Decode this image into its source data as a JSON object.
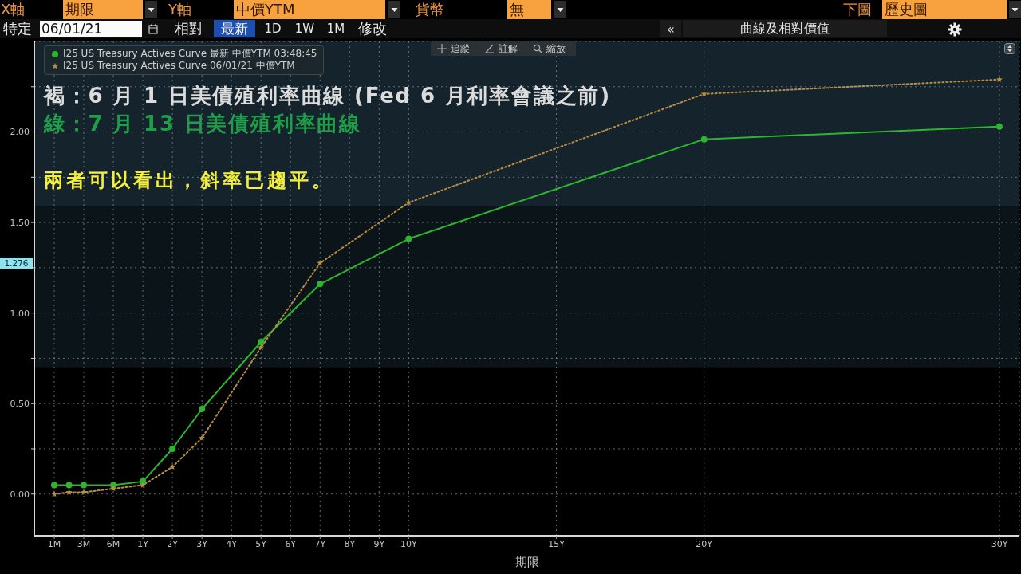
{
  "chart_data": {
    "type": "line",
    "xlabel": "期限",
    "annotations": [
      "褐：6 月 1 日美債殖利率曲線 (Fed 6 月利率會議之前)",
      "綠：7 月 13 日美債殖利率曲線",
      "兩者可以看出，斜率已趨平。",
      "X軸",
      "期限",
      "Y軸",
      "中價YTM",
      "貨幣",
      "無",
      "下圖",
      "歷史圖",
      "特定",
      "06/01/21",
      "相對",
      "最新",
      "1D",
      "1W",
      "1M",
      "修改",
      "«",
      "曲線及相對價值",
      "追蹤",
      "註解",
      "縮放",
      {
        "text": "1.276",
        "y": 1.276
      }
    ],
    "categories": [
      "1M",
      null,
      "3M",
      null,
      "6M",
      null,
      "1Y",
      null,
      "2Y",
      null,
      "3Y",
      null,
      "4Y",
      null,
      "5Y",
      null,
      "6Y",
      null,
      "7Y",
      null,
      "8Y",
      null,
      "9Y",
      null,
      "10Y",
      null,
      null,
      null,
      null,
      null,
      null,
      null,
      null,
      null,
      "15Y",
      null,
      null,
      null,
      null,
      null,
      null,
      null,
      null,
      null,
      "20Y",
      null,
      null,
      null,
      null,
      null,
      null,
      null,
      null,
      null,
      null,
      null,
      null,
      null,
      null,
      null,
      null,
      null,
      null,
      null,
      "30Y"
    ],
    "ylim": [
      -0.23,
      2.5
    ],
    "yticks": [
      {
        "value": 0,
        "label": "0.00"
      },
      {
        "value": 0.25,
        "label": null
      },
      {
        "value": 0.5,
        "label": "0.50"
      },
      {
        "value": 0.75,
        "label": null
      },
      {
        "value": 1,
        "label": "1.00"
      },
      {
        "value": 1.25,
        "label": null
      },
      {
        "value": 1.5,
        "label": "1.50"
      },
      {
        "value": 1.75,
        "label": null
      },
      {
        "value": 2,
        "label": "2.00"
      },
      {
        "value": 2.25,
        "label": null
      }
    ],
    "grid": true,
    "legend": "top left",
    "bands": [
      {
        "axis": "y",
        "from": 1.59,
        "to": 2.5,
        "color": "#14232c"
      },
      {
        "axis": "y",
        "from": 0.7,
        "to": 1.59,
        "color": "#0b1418"
      }
    ],
    "series": [
      {
        "name": "I25 US Treasury Actives Curve 最新 中價YTM 03:48:45",
        "color": "#2db52d",
        "marker": "circle",
        "line_style": "solid",
        "values": [
          0.05,
          0.05,
          0.05,
          null,
          0.05,
          null,
          0.07,
          null,
          0.25,
          null,
          0.47,
          null,
          null,
          null,
          0.84,
          null,
          null,
          null,
          1.16,
          null,
          null,
          null,
          null,
          null,
          1.41,
          null,
          null,
          null,
          null,
          null,
          null,
          null,
          null,
          null,
          null,
          null,
          null,
          null,
          null,
          null,
          null,
          null,
          null,
          null,
          1.96,
          null,
          null,
          null,
          null,
          null,
          null,
          null,
          null,
          null,
          null,
          null,
          null,
          null,
          null,
          null,
          null,
          null,
          null,
          null,
          2.03
        ]
      },
      {
        "name": "I25 US Treasury Actives Curve 06/01/21 中價YTM",
        "color": "#b58d45",
        "marker": "star",
        "line_style": "dotted",
        "values": [
          0,
          0.01,
          0.01,
          null,
          0.03,
          null,
          0.05,
          null,
          0.15,
          null,
          0.31,
          null,
          null,
          null,
          0.81,
          null,
          null,
          null,
          1.276,
          null,
          null,
          null,
          null,
          null,
          1.61,
          null,
          null,
          null,
          null,
          null,
          null,
          null,
          null,
          null,
          null,
          null,
          null,
          null,
          null,
          null,
          null,
          null,
          null,
          null,
          2.21,
          null,
          null,
          null,
          null,
          null,
          null,
          null,
          null,
          null,
          null,
          null,
          null,
          null,
          null,
          null,
          null,
          null,
          null,
          null,
          2.29
        ]
      }
    ]
  }
}
